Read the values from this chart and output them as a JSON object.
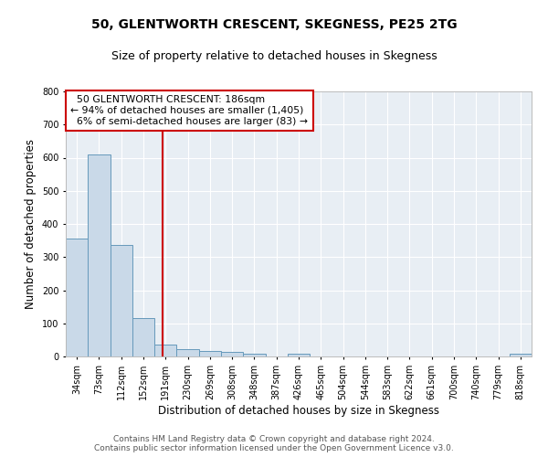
{
  "title": "50, GLENTWORTH CRESCENT, SKEGNESS, PE25 2TG",
  "subtitle": "Size of property relative to detached houses in Skegness",
  "xlabel": "Distribution of detached houses by size in Skegness",
  "ylabel": "Number of detached properties",
  "categories": [
    "34sqm",
    "73sqm",
    "112sqm",
    "152sqm",
    "191sqm",
    "230sqm",
    "269sqm",
    "308sqm",
    "348sqm",
    "387sqm",
    "426sqm",
    "465sqm",
    "504sqm",
    "544sqm",
    "583sqm",
    "622sqm",
    "661sqm",
    "700sqm",
    "740sqm",
    "779sqm",
    "818sqm"
  ],
  "values": [
    357,
    611,
    337,
    115,
    36,
    21,
    16,
    13,
    9,
    0,
    9,
    0,
    0,
    0,
    0,
    0,
    0,
    0,
    0,
    0,
    8
  ],
  "bar_color": "#c9d9e8",
  "bar_edge_color": "#6699bb",
  "vline_color": "#cc0000",
  "vline_pos": 3.87,
  "annotation_text": "  50 GLENTWORTH CRESCENT: 186sqm\n← 94% of detached houses are smaller (1,405)\n  6% of semi-detached houses are larger (83) →",
  "annotation_box_color": "#ffffff",
  "annotation_box_edge": "#cc0000",
  "ylim": [
    0,
    800
  ],
  "yticks": [
    0,
    100,
    200,
    300,
    400,
    500,
    600,
    700,
    800
  ],
  "background_color": "#e8eef4",
  "grid_color": "#ffffff",
  "footer_text": "Contains HM Land Registry data © Crown copyright and database right 2024.\nContains public sector information licensed under the Open Government Licence v3.0.",
  "title_fontsize": 10,
  "subtitle_fontsize": 9,
  "xlabel_fontsize": 8.5,
  "ylabel_fontsize": 8.5,
  "tick_fontsize": 7,
  "footer_fontsize": 6.5
}
